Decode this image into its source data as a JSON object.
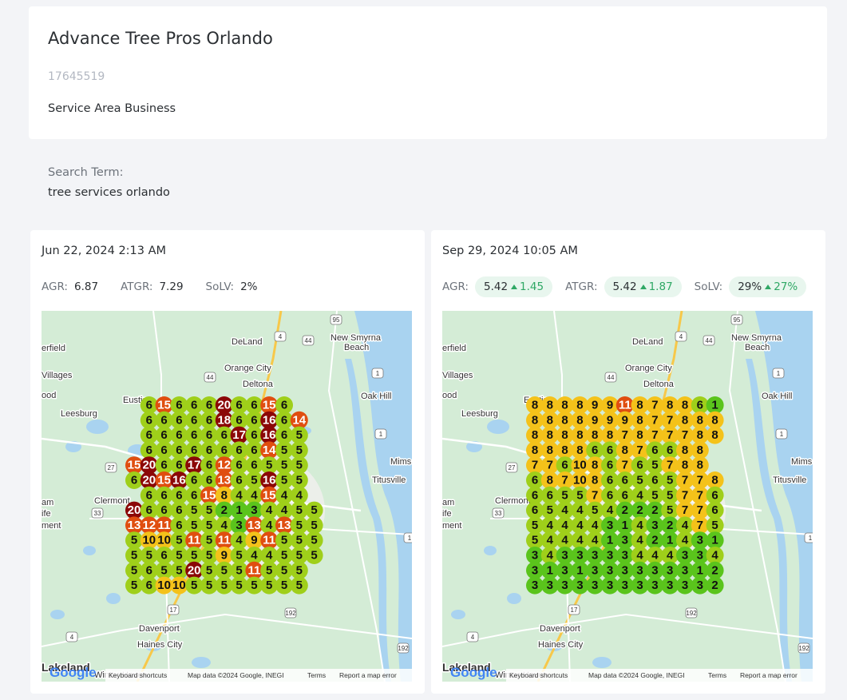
{
  "business": {
    "name": "Advance Tree Pros Orlando",
    "id": "17645519",
    "type": "Service Area Business"
  },
  "search": {
    "label": "Search Term:",
    "term": "tree services orlando"
  },
  "colors": {
    "red": "#e04e10",
    "darkred": "#8b0707",
    "orange": "#f49d1a",
    "yellow": "#f4c21a",
    "lime": "#9fcf1a",
    "green": "#5ac41c",
    "delta_green": "#2fa865"
  },
  "map_labels": {
    "places": [
      "DeLand",
      "New Smyrna",
      "Beach",
      "Orange City",
      "Deltona",
      "Oak Hill",
      "Eustis",
      "Leesburg",
      "Mims",
      "Titusville",
      "Clermont",
      "Davenport",
      "Haines City",
      "Lakeland",
      "Winter Haven",
      "Villages",
      "erfield",
      "ood",
      "am",
      "ife",
      "ment"
    ],
    "roads": [
      "95",
      "4",
      "44",
      "44",
      "1",
      "1",
      "27",
      "33",
      "1",
      "17",
      "4",
      "192",
      "192"
    ],
    "footer": {
      "shortcuts": "Keyboard shortcuts",
      "mapdata": "Map data ©2024 Google, INEGI",
      "terms": "Terms",
      "report": "Report a map error",
      "logo": "Google"
    }
  },
  "scans": [
    {
      "date": "Jun 22, 2024 2:13 AM",
      "metrics": [
        {
          "label": "AGR:",
          "value": "6.87"
        },
        {
          "label": "ATGR:",
          "value": "7.29"
        },
        {
          "label": "SoLV:",
          "value": "2%"
        }
      ],
      "grid": [
        [
          "6",
          "15",
          "6",
          "6",
          "6",
          "20",
          "6",
          "6",
          "15",
          "6"
        ],
        [
          "6",
          "6",
          "6",
          "6",
          "6",
          "18",
          "6",
          "6",
          "16",
          "6",
          "14"
        ],
        [
          "6",
          "6",
          "6",
          "6",
          "6",
          "6",
          "17",
          "6",
          "16",
          "6",
          "5"
        ],
        [
          "6",
          "6",
          "6",
          "6",
          "6",
          "6",
          "6",
          "6",
          "14",
          "5",
          "5"
        ],
        [
          "15",
          "20",
          "6",
          "6",
          "17",
          "6",
          "12",
          "6",
          "6",
          "5",
          "5",
          "5"
        ],
        [
          "6",
          "20",
          "15",
          "16",
          "6",
          "6",
          "13",
          "6",
          "5",
          "16",
          "5",
          "5"
        ],
        [
          "6",
          "6",
          "6",
          "6",
          "15",
          "8",
          "4",
          "4",
          "15",
          "4",
          "4"
        ],
        [
          "20",
          "6",
          "6",
          "6",
          "5",
          "5",
          "2",
          "1",
          "3",
          "4",
          "4",
          "5",
          "5"
        ],
        [
          "13",
          "12",
          "11",
          "6",
          "5",
          "5",
          "4",
          "3",
          "13",
          "4",
          "13",
          "5",
          "5"
        ],
        [
          "5",
          "10",
          "10",
          "5",
          "11",
          "5",
          "11",
          "4",
          "9",
          "11",
          "5",
          "5",
          "5"
        ],
        [
          "5",
          "5",
          "6",
          "5",
          "5",
          "5",
          "9",
          "5",
          "4",
          "4",
          "5",
          "5",
          "5"
        ],
        [
          "5",
          "6",
          "5",
          "5",
          "20",
          "5",
          "5",
          "5",
          "11",
          "5",
          "5",
          "5"
        ],
        [
          "5",
          "6",
          "10",
          "10",
          "5",
          "5",
          "5",
          "5",
          "5",
          "5",
          "5",
          "5"
        ]
      ]
    },
    {
      "date": "Sep 29, 2024 10:05 AM",
      "metrics": [
        {
          "label": "AGR:",
          "value": "5.42",
          "delta": "1.45"
        },
        {
          "label": "ATGR:",
          "value": "5.42",
          "delta": "1.87"
        },
        {
          "label": "SoLV:",
          "value": "29%",
          "delta": "27%"
        }
      ],
      "grid": [
        [
          "8",
          "8",
          "8",
          "8",
          "9",
          "9",
          "11",
          "8",
          "7",
          "8",
          "8",
          "6",
          "1"
        ],
        [
          "8",
          "8",
          "8",
          "8",
          "9",
          "9",
          "9",
          "8",
          "7",
          "7",
          "8",
          "8",
          "8"
        ],
        [
          "8",
          "8",
          "8",
          "8",
          "8",
          "8",
          "7",
          "8",
          "7",
          "7",
          "7",
          "8",
          "8"
        ],
        [
          "8",
          "8",
          "8",
          "8",
          "6",
          "6",
          "8",
          "7",
          "6",
          "6",
          "8",
          "8"
        ],
        [
          "7",
          "7",
          "6",
          "10",
          "8",
          "6",
          "7",
          "6",
          "5",
          "7",
          "8",
          "8"
        ],
        [
          "6",
          "8",
          "7",
          "10",
          "8",
          "6",
          "6",
          "5",
          "6",
          "5",
          "7",
          "7",
          "8"
        ],
        [
          "6",
          "6",
          "5",
          "5",
          "7",
          "6",
          "6",
          "4",
          "5",
          "5",
          "7",
          "7",
          "6"
        ],
        [
          "6",
          "5",
          "4",
          "4",
          "5",
          "4",
          "2",
          "2",
          "2",
          "5",
          "7",
          "7",
          "6"
        ],
        [
          "5",
          "4",
          "4",
          "4",
          "4",
          "3",
          "1",
          "4",
          "3",
          "2",
          "4",
          "7",
          "5"
        ],
        [
          "5",
          "4",
          "4",
          "4",
          "4",
          "1",
          "3",
          "4",
          "2",
          "1",
          "4",
          "3",
          "1"
        ],
        [
          "3",
          "4",
          "3",
          "3",
          "3",
          "3",
          "3",
          "4",
          "4",
          "4",
          "3",
          "3",
          "4"
        ],
        [
          "3",
          "1",
          "3",
          "1",
          "3",
          "3",
          "3",
          "3",
          "3",
          "3",
          "3",
          "1",
          "2"
        ],
        [
          "3",
          "3",
          "3",
          "3",
          "3",
          "3",
          "3",
          "3",
          "3",
          "3",
          "3",
          "3",
          "2"
        ]
      ]
    }
  ]
}
